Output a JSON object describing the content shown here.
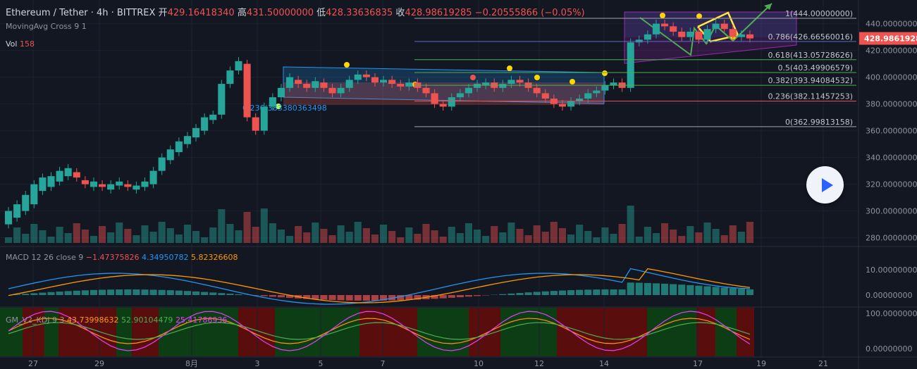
{
  "header": {
    "symbol": "Ethereum / Tether · 4h · BITTREX",
    "open_label": "开",
    "open": "429.16418340",
    "high_label": "高",
    "high": "431.50000000",
    "low_label": "低",
    "low": "428.33636835",
    "close_label": "收",
    "close": "428.98619285",
    "change": "−0.20555866 (−0.05%)",
    "indicator": "MovingAvg Cross 9 1",
    "vol_label": "Vol",
    "vol_value": "158"
  },
  "macd_header": {
    "label": "MACD 12 26 close 9",
    "v1": "−1.47375826",
    "v2": "4.34950782",
    "v3": "5.82326608"
  },
  "kdj_header": {
    "label": "GM_V2_KDJ 9 3",
    "v1": "43.73998632",
    "v2": "52.90104479",
    "v3": "25.41786936"
  },
  "colors": {
    "bg": "#131722",
    "up": "#26a69a",
    "down": "#ef5350",
    "fib": "#4caf50",
    "fib_top": "#a0a4ad",
    "price_tag": "#ef5350"
  },
  "chart_data": {
    "type": "candlestick",
    "title": "Ethereum / Tether · 4h · BITTREX",
    "y_axis_price": {
      "ticks": [
        "440.00000000",
        "420.00000000",
        "400.00000000",
        "380.00000000",
        "360.00000000",
        "340.00000000",
        "320.00000000",
        "300.00000000",
        "280.00000000"
      ],
      "range": [
        270,
        450
      ]
    },
    "y_axis_macd": {
      "ticks": [
        "10.00000000",
        "0.00000000"
      ]
    },
    "y_axis_kdj": {
      "ticks": [
        "100.00000000",
        "0.00000000"
      ]
    },
    "x_axis": {
      "ticks": [
        "27",
        "29",
        "8月",
        "3",
        "5",
        "7",
        "10",
        "12",
        "14",
        "17",
        "19",
        "21"
      ]
    },
    "current_price": "428.98619285",
    "fib_levels": [
      {
        "label": "1(444.00000000)",
        "value": 444.0
      },
      {
        "label": "0.786(426.66560016)",
        "value": 426.6656
      },
      {
        "label": "0.618(413.05728626)",
        "value": 413.0573
      },
      {
        "label": "0.5(403.49906579)",
        "value": 403.4991
      },
      {
        "label": "0.382(393.94084532)",
        "value": 393.9408
      },
      {
        "label": "0.236(382.11457253)",
        "value": 382.1146
      },
      {
        "label": "0(362.99813158)",
        "value": 362.9981
      }
    ],
    "annotation": "0.236(383380363498",
    "candles_approx": [
      [
        290,
        300
      ],
      [
        295,
        305
      ],
      [
        300,
        312
      ],
      [
        305,
        320
      ],
      [
        315,
        325
      ],
      [
        318,
        326
      ],
      [
        322,
        330
      ],
      [
        326,
        332
      ],
      [
        329,
        325
      ],
      [
        323,
        320
      ],
      [
        318,
        322
      ],
      [
        320,
        318
      ],
      [
        316,
        320
      ],
      [
        319,
        322
      ],
      [
        320,
        318
      ],
      [
        316,
        319
      ],
      [
        318,
        322
      ],
      [
        320,
        330
      ],
      [
        330,
        340
      ],
      [
        338,
        346
      ],
      [
        344,
        352
      ],
      [
        350,
        356
      ],
      [
        355,
        362
      ],
      [
        360,
        370
      ],
      [
        368,
        372
      ],
      [
        372,
        395
      ],
      [
        395,
        405
      ],
      [
        405,
        412
      ],
      [
        410,
        370
      ],
      [
        370,
        360
      ],
      [
        360,
        378
      ],
      [
        378,
        385
      ],
      [
        385,
        392
      ],
      [
        392,
        400
      ],
      [
        398,
        395
      ],
      [
        395,
        392
      ],
      [
        392,
        397
      ],
      [
        396,
        392
      ],
      [
        392,
        388
      ],
      [
        388,
        392
      ],
      [
        392,
        398
      ],
      [
        398,
        402
      ],
      [
        402,
        400
      ],
      [
        400,
        396
      ],
      [
        396,
        398
      ],
      [
        398,
        395
      ],
      [
        395,
        393
      ],
      [
        393,
        396
      ],
      [
        396,
        392
      ],
      [
        392,
        388
      ],
      [
        388,
        380
      ],
      [
        380,
        378
      ],
      [
        378,
        385
      ],
      [
        385,
        388
      ],
      [
        388,
        392
      ],
      [
        392,
        395
      ],
      [
        394,
        396
      ],
      [
        396,
        392
      ],
      [
        392,
        395
      ],
      [
        395,
        398
      ],
      [
        398,
        396
      ],
      [
        396,
        392
      ],
      [
        392,
        388
      ],
      [
        388,
        384
      ],
      [
        384,
        380
      ],
      [
        380,
        378
      ],
      [
        378,
        382
      ],
      [
        382,
        384
      ],
      [
        384,
        388
      ],
      [
        388,
        390
      ],
      [
        390,
        394
      ],
      [
        394,
        396
      ],
      [
        396,
        392
      ],
      [
        392,
        426
      ],
      [
        426,
        428
      ],
      [
        428,
        432
      ],
      [
        432,
        440
      ],
      [
        440,
        438
      ],
      [
        438,
        434
      ],
      [
        434,
        430
      ],
      [
        430,
        434
      ],
      [
        434,
        428
      ],
      [
        428,
        436
      ],
      [
        436,
        440
      ],
      [
        440,
        436
      ],
      [
        436,
        430
      ],
      [
        430,
        432
      ],
      [
        432,
        429
      ]
    ]
  }
}
